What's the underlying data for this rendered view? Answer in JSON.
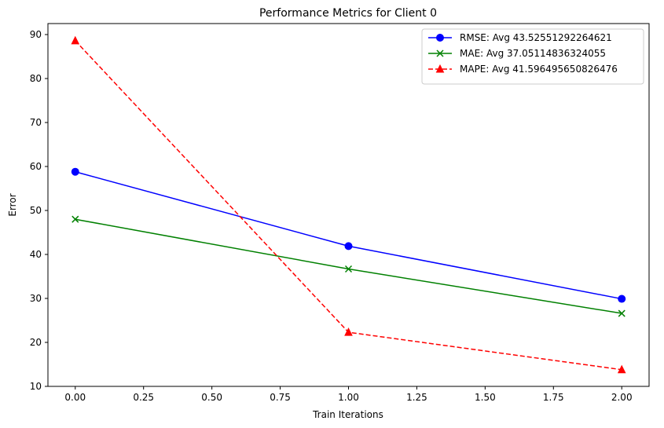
{
  "chart_data": {
    "type": "line",
    "title": "Performance Metrics for Client 0",
    "xlabel": "Train Iterations",
    "ylabel": "Error",
    "xlim": [
      -0.1,
      2.1
    ],
    "ylim": [
      10,
      92.5
    ],
    "xticks": [
      "0.00",
      "0.25",
      "0.50",
      "0.75",
      "1.00",
      "1.25",
      "1.50",
      "1.75",
      "2.00"
    ],
    "yticks": [
      "10",
      "20",
      "30",
      "40",
      "50",
      "60",
      "70",
      "80",
      "90"
    ],
    "grid": false,
    "legend_position": "top-right",
    "series": [
      {
        "name": "RMSE: Avg 43.52551292264621",
        "color": "#0000ff",
        "marker": "circle",
        "dash": "solid",
        "x": [
          0,
          1,
          2
        ],
        "y": [
          58.8,
          41.9,
          29.9
        ]
      },
      {
        "name": "MAE: Avg 37.05114836324055",
        "color": "#008000",
        "marker": "x",
        "dash": "solid",
        "x": [
          0,
          1,
          2
        ],
        "y": [
          48.0,
          36.7,
          26.6
        ]
      },
      {
        "name": "MAPE: Avg 41.596495650826476",
        "color": "#ff0000",
        "marker": "triangle",
        "dash": "dashed",
        "x": [
          0,
          1,
          2
        ],
        "y": [
          88.6,
          22.3,
          13.8
        ]
      }
    ]
  }
}
